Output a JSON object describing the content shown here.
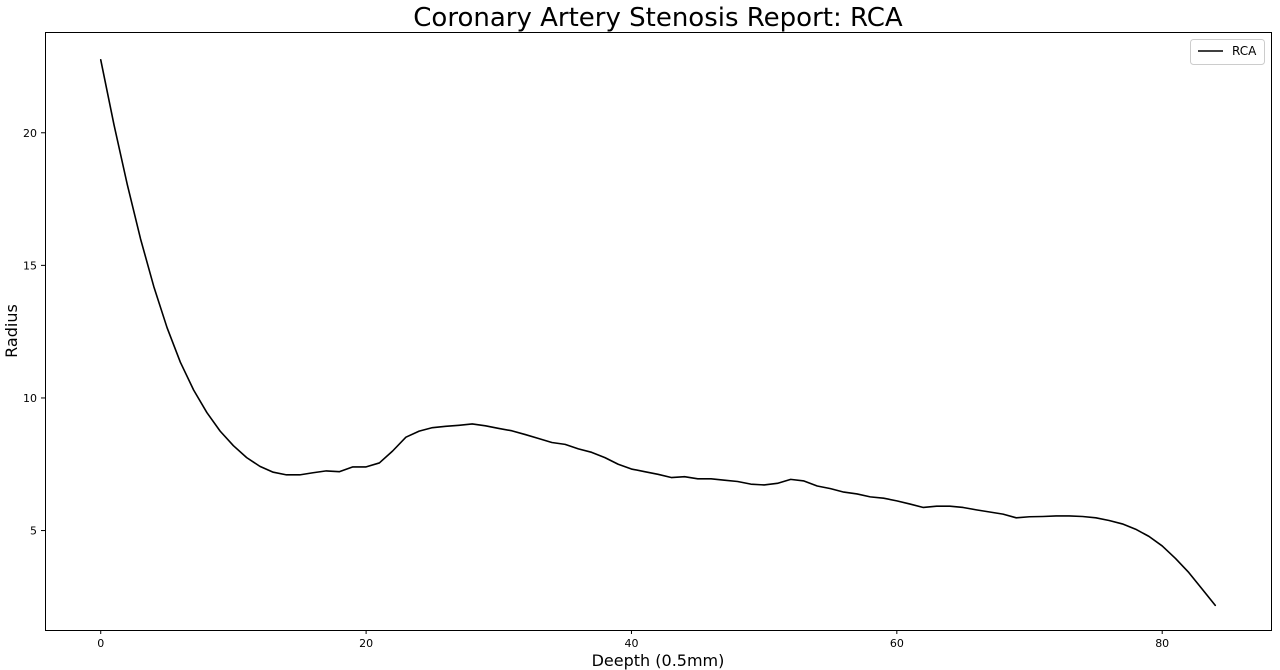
{
  "chart_data": {
    "type": "line",
    "title": "Coronary Artery Stenosis Report: RCA",
    "xlabel": "Deepth (0.5mm)",
    "ylabel": "Radius",
    "xlim": [
      -4.2,
      88.2
    ],
    "ylim": [
      1.25,
      23.8
    ],
    "xticks": [
      0,
      20,
      40,
      60,
      80
    ],
    "yticks": [
      5,
      10,
      15,
      20
    ],
    "grid": false,
    "legend_position": "top-right",
    "series": [
      {
        "name": "RCA",
        "color": "#000000",
        "x": [
          0,
          1,
          2,
          3,
          4,
          5,
          6,
          7,
          8,
          9,
          10,
          11,
          12,
          13,
          14,
          15,
          16,
          17,
          18,
          19,
          20,
          21,
          22,
          23,
          24,
          25,
          26,
          27,
          28,
          29,
          30,
          31,
          32,
          33,
          34,
          35,
          36,
          37,
          38,
          39,
          40,
          41,
          42,
          43,
          44,
          45,
          46,
          47,
          48,
          49,
          50,
          51,
          52,
          53,
          54,
          55,
          56,
          57,
          58,
          59,
          60,
          61,
          62,
          63,
          64,
          65,
          66,
          67,
          68,
          69,
          70,
          71,
          72,
          73,
          74,
          75,
          76,
          77,
          78,
          79,
          80,
          81,
          82,
          83,
          84
        ],
        "y": [
          22.75,
          20.3,
          18.05,
          16.0,
          14.2,
          12.65,
          11.35,
          10.3,
          9.45,
          8.75,
          8.2,
          7.75,
          7.42,
          7.2,
          7.1,
          7.1,
          7.18,
          7.25,
          7.22,
          7.4,
          7.4,
          7.55,
          8.0,
          8.52,
          8.75,
          8.88,
          8.93,
          8.97,
          9.02,
          8.95,
          8.85,
          8.76,
          8.62,
          8.47,
          8.32,
          8.25,
          8.08,
          7.95,
          7.75,
          7.5,
          7.32,
          7.22,
          7.12,
          7.0,
          7.03,
          6.95,
          6.95,
          6.9,
          6.85,
          6.75,
          6.72,
          6.78,
          6.93,
          6.87,
          6.68,
          6.58,
          6.45,
          6.38,
          6.27,
          6.22,
          6.12,
          6.0,
          5.87,
          5.92,
          5.92,
          5.87,
          5.78,
          5.7,
          5.62,
          5.48,
          5.52,
          5.53,
          5.55,
          5.55,
          5.53,
          5.48,
          5.38,
          5.25,
          5.05,
          4.78,
          4.42,
          3.95,
          3.42,
          2.8,
          2.18
        ]
      }
    ]
  }
}
